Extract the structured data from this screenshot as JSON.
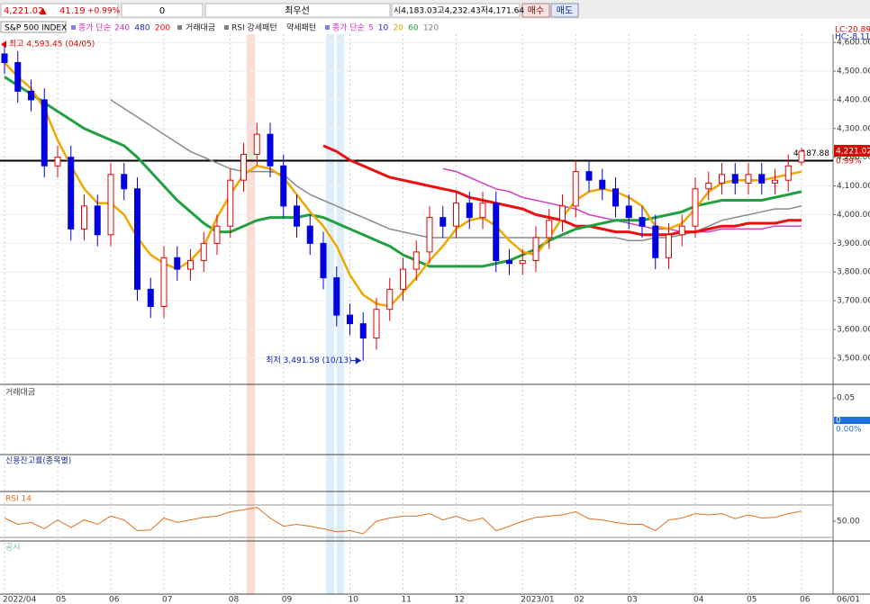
{
  "toolbar": {
    "price": "4,221.02",
    "arrow": "▲",
    "change": "41.19",
    "change_pct": "+0.99%",
    "qty": "0",
    "mode": "최우선",
    "ohl": "시4,183.03고4,232.43저4,171.64",
    "buy": "매수",
    "sell": "매도"
  },
  "legend": {
    "symbol": "S&P 500 INDEX",
    "ma_long": {
      "label": "종가 단순",
      "color": "#d030c0",
      "periods": [
        {
          "text": "240",
          "color": "#d030c0"
        },
        {
          "text": "480",
          "color": "#2020c0"
        },
        {
          "text": "200",
          "color": "#e01010"
        }
      ]
    },
    "volume": "거래대금",
    "rsi_strong": "RSI 강세패턴",
    "weak": "약세패턴",
    "ma_short": {
      "label": "종가 단순",
      "color": "#d030c0",
      "periods": [
        {
          "text": "5",
          "color": "#d030c0"
        },
        {
          "text": "10",
          "color": "#2020c0"
        },
        {
          "text": "20",
          "color": "#e0a000"
        },
        {
          "text": "60",
          "color": "#20a040"
        },
        {
          "text": "120",
          "color": "#808080"
        }
      ]
    }
  },
  "chart_data": {
    "type": "candlestick",
    "up_color": "#e60000",
    "down_color": "#0000e0",
    "categories": [
      "2022/04",
      null,
      null,
      null,
      "05",
      null,
      null,
      null,
      "06",
      null,
      null,
      null,
      "07",
      null,
      null,
      null,
      null,
      "08",
      null,
      null,
      null,
      "09",
      null,
      null,
      null,
      null,
      "10",
      null,
      null,
      null,
      "11",
      null,
      null,
      null,
      "12",
      null,
      null,
      null,
      null,
      "2023/01",
      null,
      null,
      null,
      "02",
      null,
      null,
      null,
      "03",
      null,
      null,
      null,
      null,
      "04",
      null,
      null,
      null,
      "05",
      null,
      null,
      null,
      "06"
    ],
    "open": [
      4560,
      4530,
      4430,
      4400,
      4170,
      4200,
      3950,
      4030,
      3930,
      4140,
      4090,
      3740,
      3680,
      3850,
      3810,
      3840,
      3900,
      3960,
      4120,
      4210,
      4280,
      4170,
      4030,
      3960,
      3900,
      3780,
      3650,
      3620,
      3570,
      3670,
      3740,
      3810,
      3870,
      3990,
      3960,
      4040,
      3990,
      4040,
      3840,
      3830,
      3840,
      3920,
      3980,
      4030,
      4150,
      4120,
      4090,
      4030,
      3990,
      3960,
      3850,
      3930,
      3960,
      4090,
      4110,
      4140,
      4110,
      4140,
      4110,
      4120,
      4183.03
    ],
    "high": [
      4593.45,
      4570,
      4470,
      4440,
      4240,
      4240,
      4070,
      4070,
      4180,
      4180,
      4130,
      3780,
      3890,
      3890,
      3880,
      3940,
      4000,
      4160,
      4250,
      4320,
      4320,
      4210,
      4070,
      4000,
      3940,
      3820,
      3690,
      3660,
      3710,
      3780,
      3850,
      3910,
      4030,
      4030,
      4080,
      4080,
      4080,
      4080,
      3880,
      3880,
      3960,
      4020,
      4070,
      4190,
      4190,
      4160,
      4130,
      4070,
      4030,
      4000,
      3970,
      4000,
      4130,
      4150,
      4180,
      4180,
      4180,
      4180,
      4160,
      4210,
      4232.43
    ],
    "low": [
      4490,
      4390,
      4360,
      4130,
      4130,
      3910,
      3910,
      3890,
      3890,
      4050,
      3700,
      3640,
      3640,
      3770,
      3770,
      3800,
      3860,
      3920,
      4080,
      4170,
      4130,
      3990,
      3920,
      3860,
      3740,
      3610,
      3580,
      3491.58,
      3530,
      3630,
      3700,
      3770,
      3830,
      3920,
      3920,
      3950,
      3950,
      3800,
      3790,
      3790,
      3800,
      3880,
      3940,
      3990,
      4080,
      4050,
      3990,
      3950,
      3920,
      3810,
      3810,
      3890,
      3920,
      4050,
      4070,
      4070,
      4070,
      4070,
      4070,
      4080,
      4171.64
    ],
    "close": [
      4530,
      4430,
      4400,
      4170,
      4200,
      3950,
      4030,
      3930,
      4140,
      4090,
      3740,
      3680,
      3850,
      3810,
      3840,
      3900,
      3960,
      4120,
      4210,
      4280,
      4170,
      4030,
      3960,
      3900,
      3780,
      3650,
      3620,
      3570,
      3670,
      3740,
      3810,
      3870,
      3990,
      3960,
      4040,
      3990,
      4040,
      3840,
      3830,
      3840,
      3920,
      3980,
      4030,
      4150,
      4120,
      4090,
      4030,
      3990,
      3960,
      3850,
      3930,
      3960,
      4090,
      4110,
      4140,
      4110,
      4140,
      4110,
      4120,
      4170,
      4221.02
    ],
    "series": [
      {
        "name": "120",
        "color": "#8a8a8a",
        "width": 1.5,
        "values": [
          null,
          null,
          null,
          null,
          null,
          null,
          null,
          null,
          4400,
          4370,
          4340,
          4310,
          4280,
          4250,
          4220,
          4200,
          4180,
          4160,
          4150,
          4150,
          4150,
          4140,
          4100,
          4070,
          4050,
          4030,
          4010,
          3990,
          3970,
          3950,
          3940,
          3930,
          3920,
          3920,
          3920,
          3920,
          3920,
          3920,
          3920,
          3920,
          3920,
          3920,
          3920,
          3920,
          3920,
          3920,
          3920,
          3910,
          3910,
          3920,
          3920,
          3930,
          3940,
          3960,
          3980,
          3990,
          4000,
          4010,
          4020,
          4020,
          4030
        ]
      },
      {
        "name": "240",
        "color": "#d040c0",
        "width": 1.5,
        "values": [
          null,
          null,
          null,
          null,
          null,
          null,
          null,
          null,
          null,
          null,
          null,
          null,
          null,
          null,
          null,
          null,
          null,
          null,
          null,
          null,
          null,
          null,
          null,
          null,
          null,
          null,
          null,
          null,
          null,
          null,
          null,
          null,
          null,
          4160,
          4150,
          4130,
          4110,
          4090,
          4080,
          4060,
          4050,
          4040,
          4030,
          4020,
          4000,
          3990,
          3980,
          3970,
          3960,
          3950,
          3950,
          3940,
          3940,
          3940,
          3950,
          3950,
          3950,
          3950,
          3960,
          3960,
          3960
        ]
      },
      {
        "name": "200",
        "color": "#e81010",
        "width": 3,
        "values": [
          null,
          null,
          null,
          null,
          null,
          null,
          null,
          null,
          null,
          null,
          null,
          null,
          null,
          null,
          null,
          null,
          null,
          null,
          null,
          null,
          null,
          null,
          null,
          null,
          4240,
          4220,
          4190,
          4170,
          4150,
          4130,
          4120,
          4110,
          4100,
          4090,
          4080,
          4060,
          4050,
          4040,
          4030,
          4020,
          4000,
          3990,
          3980,
          3960,
          3960,
          3950,
          3940,
          3940,
          3930,
          3930,
          3930,
          3940,
          3940,
          3950,
          3960,
          3960,
          3970,
          3970,
          3970,
          3980,
          3980
        ]
      },
      {
        "name": "60",
        "color": "#20a040",
        "width": 3,
        "values": [
          4480,
          4450,
          4420,
          4390,
          4360,
          4330,
          4300,
          4280,
          4260,
          4240,
          4200,
          4150,
          4100,
          4050,
          4010,
          3970,
          3940,
          3940,
          3960,
          3980,
          3990,
          3990,
          3990,
          4000,
          3990,
          3970,
          3950,
          3930,
          3910,
          3890,
          3860,
          3840,
          3820,
          3820,
          3820,
          3820,
          3820,
          3830,
          3840,
          3860,
          3880,
          3910,
          3930,
          3950,
          3960,
          3970,
          3980,
          3980,
          3980,
          3990,
          4000,
          4010,
          4030,
          4040,
          4050,
          4050,
          4050,
          4050,
          4060,
          4070,
          4080
        ]
      },
      {
        "name": "20",
        "color": "#f0a800",
        "width": 2.5,
        "values": [
          4530,
          4480,
          4440,
          4370,
          4260,
          4170,
          4090,
          4040,
          4040,
          4000,
          3920,
          3860,
          3830,
          3810,
          3840,
          3890,
          3990,
          4070,
          4140,
          4170,
          4160,
          4130,
          4070,
          4010,
          3960,
          3890,
          3790,
          3720,
          3690,
          3680,
          3730,
          3780,
          3840,
          3890,
          3950,
          3980,
          3990,
          3960,
          3910,
          3870,
          3860,
          3920,
          3990,
          4050,
          4080,
          4090,
          4080,
          4060,
          4030,
          3960,
          3950,
          3970,
          4020,
          4080,
          4110,
          4120,
          4120,
          4120,
          4130,
          4140,
          4150
        ]
      }
    ],
    "ylim": [
      3415,
      4660
    ],
    "yticks": [
      {
        "value": 3500,
        "label": "3,500.00"
      },
      {
        "value": 3600,
        "label": "3,600.00"
      },
      {
        "value": 3700,
        "label": "3,700.00"
      },
      {
        "value": 3800,
        "label": "3,800.00"
      },
      {
        "value": 3900,
        "label": "3,900.00"
      },
      {
        "value": 4000,
        "label": "4,000.00"
      },
      {
        "value": 4100,
        "label": "4,100.00"
      },
      {
        "value": 4200,
        "label": "4,200.00"
      },
      {
        "value": 4300,
        "label": "4,300.00"
      },
      {
        "value": 4400,
        "label": "4,400.00"
      },
      {
        "value": 4500,
        "label": "4,500.00"
      },
      {
        "value": 4600,
        "label": "4,600.00"
      }
    ],
    "ref_line": {
      "value": 4187.88,
      "label": "4,187.88"
    },
    "max_label": "최고 4,593.45 (04/05)",
    "min_label": "최저 3,491.58 (10/13)",
    "last_price_label": "4,221.02",
    "last_pct_label": "0.99%",
    "lc_label": "LC:20.89",
    "hc_label": "HC:-8.11",
    "last_date_label": "06/01",
    "volume_panel": {
      "title": "거래대금",
      "ylim": [
        0,
        0.06
      ],
      "yticks": [
        0.05
      ],
      "last_value": 0,
      "last_pct_label": "0.00%"
    },
    "credit_panel": {
      "title": "신용잔고률(종목별)"
    },
    "rsi_panel": {
      "title": "RSI 14",
      "color": "#e07020",
      "ylim": [
        20,
        80
      ],
      "yticks": [
        {
          "value": 50,
          "label": "50.00"
        }
      ],
      "values": [
        55,
        45,
        48,
        38,
        52,
        40,
        52,
        45,
        58,
        52,
        35,
        36,
        55,
        48,
        52,
        56,
        58,
        65,
        68,
        72,
        55,
        42,
        45,
        42,
        38,
        33,
        35,
        30,
        50,
        55,
        58,
        58,
        62,
        52,
        58,
        50,
        55,
        35,
        42,
        50,
        56,
        58,
        60,
        65,
        54,
        52,
        48,
        45,
        45,
        35,
        52,
        55,
        62,
        60,
        62,
        54,
        60,
        55,
        56,
        62,
        66
      ]
    },
    "notice_panel": {
      "title": "공시"
    }
  }
}
